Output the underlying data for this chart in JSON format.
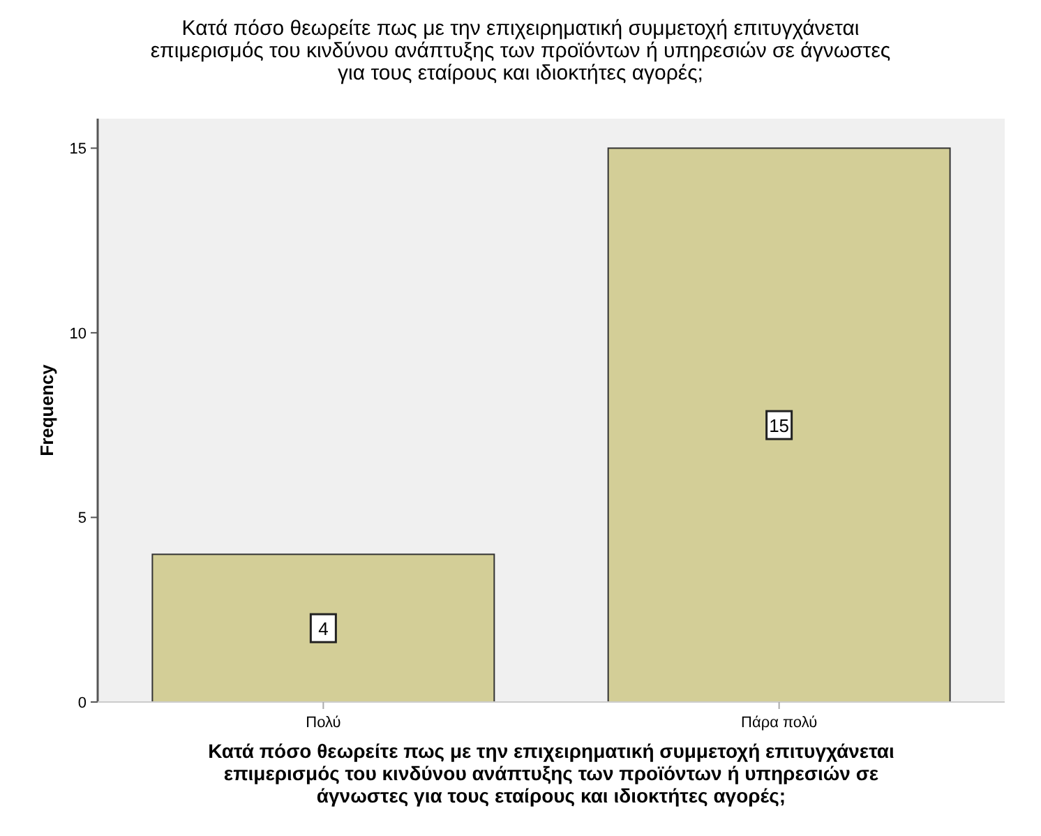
{
  "chart_data": {
    "type": "bar",
    "title": "Κατά πόσο θεωρείτε πως με την επιχειρηματική συμμετοχή επιτυγχάνεται\nεπιμερισμός του κινδύνου ανάπτυξης των προϊόντων ή υπηρεσιών σε άγνωστες\nγια τους εταίρους και ιδιοκτήτες αγορές;",
    "xlabel": "Κατά πόσο θεωρείτε πως με την επιχειρηματική συμμετοχή επιτυγχάνεται\nεπιμερισμός του κινδύνου ανάπτυξης των προϊόντων ή υπηρεσιών σε\nάγνωστες για τους εταίρους και ιδιοκτήτες αγορές;",
    "ylabel": "Frequency",
    "categories": [
      "Πολύ",
      "Πάρα πολύ"
    ],
    "values": [
      4,
      15
    ],
    "color": "#d3ce97",
    "ylim": [
      0,
      15.8
    ],
    "yticks": [
      0,
      5,
      10,
      15
    ],
    "data_labels": true
  }
}
